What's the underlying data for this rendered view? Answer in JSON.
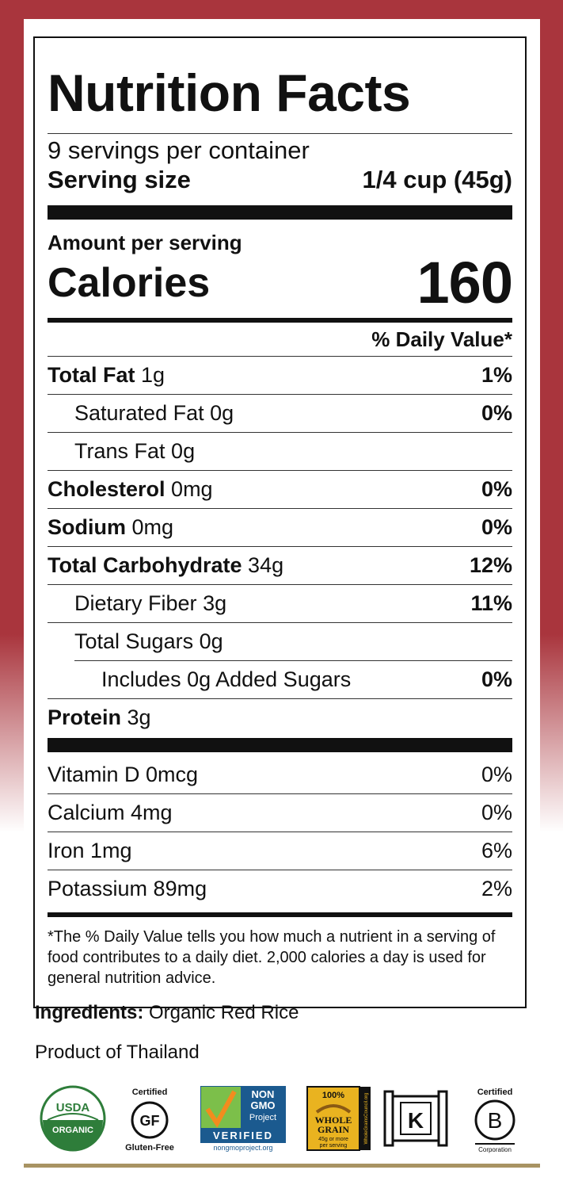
{
  "panel": {
    "title": "Nutrition Facts",
    "servings_per_container": "9 servings per container",
    "serving_size_label": "Serving size",
    "serving_size_value": "1/4 cup (45g)",
    "amount_per_serving": "Amount per serving",
    "calories_label": "Calories",
    "calories_value": "160",
    "daily_value_header": "% Daily Value*",
    "nutrients": [
      {
        "name": "Total Fat",
        "amount": "1g",
        "dv": "1%"
      },
      {
        "name": "Saturated Fat",
        "amount": "0g",
        "dv": "0%"
      },
      {
        "name": "Trans Fat",
        "amount": "0g",
        "dv": ""
      },
      {
        "name": "Cholesterol",
        "amount": "0mg",
        "dv": "0%"
      },
      {
        "name": "Sodium",
        "amount": "0mg",
        "dv": "0%"
      },
      {
        "name": "Total Carbohydrate",
        "amount": "34g",
        "dv": "12%"
      },
      {
        "name": "Dietary Fiber",
        "amount": "3g",
        "dv": "11%"
      },
      {
        "name": "Total Sugars",
        "amount": "0g",
        "dv": ""
      },
      {
        "name": "Includes 0g Added Sugars",
        "amount": "",
        "dv": "0%"
      },
      {
        "name": "Protein",
        "amount": "3g",
        "dv": ""
      }
    ],
    "vitamins": [
      {
        "label": "Vitamin D 0mcg",
        "dv": "0%"
      },
      {
        "label": "Calcium 4mg",
        "dv": "0%"
      },
      {
        "label": "Iron 1mg",
        "dv": "6%"
      },
      {
        "label": "Potassium 89mg",
        "dv": "2%"
      }
    ],
    "footnote": "*The % Daily Value tells you how much a nutrient in a serving of food contributes to a daily diet. 2,000 calories a day is used for general nutrition advice."
  },
  "ingredients": {
    "label": "Ingredients:",
    "value": "Organic Red Rice"
  },
  "origin": "Product of Thailand",
  "logos": {
    "usda": {
      "top": "USDA",
      "bottom": "ORGANIC"
    },
    "gluten_free": {
      "top": "Certified",
      "mark": "GF",
      "bottom": "Gluten-Free"
    },
    "non_gmo": {
      "line1": "NON",
      "line2": "GMO",
      "line3": "Project",
      "line4": "VERIFIED",
      "url": "nongmoproject.org"
    },
    "whole_grain": {
      "pct": "100%",
      "line1": "WHOLE",
      "line2": "GRAIN",
      "line3": "45g or more",
      "line4": "per serving",
      "side": "WholeGrainsCouncil.org"
    },
    "kosher": {
      "mark": "K"
    },
    "bcorp": {
      "top": "Certified",
      "mark": "B",
      "bottom": "Corporation"
    }
  },
  "colors": {
    "background_red": "#a9353d",
    "usda_green": "#2e7d3a",
    "nongmo_blue": "#1b5a8f",
    "wholegrain_gold": "#e9b320"
  }
}
